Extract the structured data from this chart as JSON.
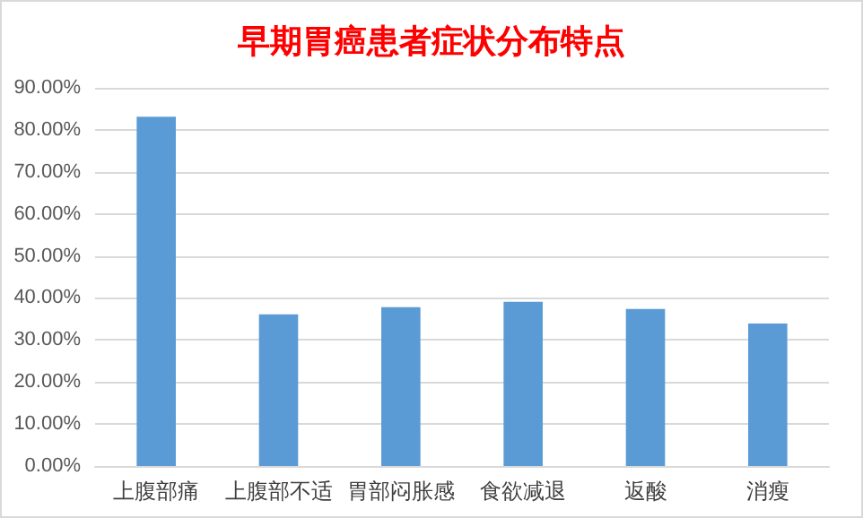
{
  "chart_data": {
    "type": "bar",
    "title": "早期胃癌患者症状分布特点",
    "categories": [
      "上腹部痛",
      "上腹部不适",
      "胃部闷胀感",
      "食欲减退",
      "返酸",
      "消瘦"
    ],
    "values": [
      83.1,
      36.1,
      37.8,
      39.1,
      37.4,
      33.9
    ],
    "color": "#5b9bd5",
    "ylim": [
      0,
      90
    ],
    "yticks": [
      {
        "value": 0,
        "label": "0.00%"
      },
      {
        "value": 10,
        "label": "10.00%"
      },
      {
        "value": 20,
        "label": "20.00%"
      },
      {
        "value": 30,
        "label": "30.00%"
      },
      {
        "value": 40,
        "label": "40.00%"
      },
      {
        "value": 50,
        "label": "50.00%"
      },
      {
        "value": 60,
        "label": "60.00%"
      },
      {
        "value": 70,
        "label": "70.00%"
      },
      {
        "value": 80,
        "label": "80.00%"
      },
      {
        "value": 90,
        "label": "90.00%"
      }
    ],
    "grid": "y"
  }
}
